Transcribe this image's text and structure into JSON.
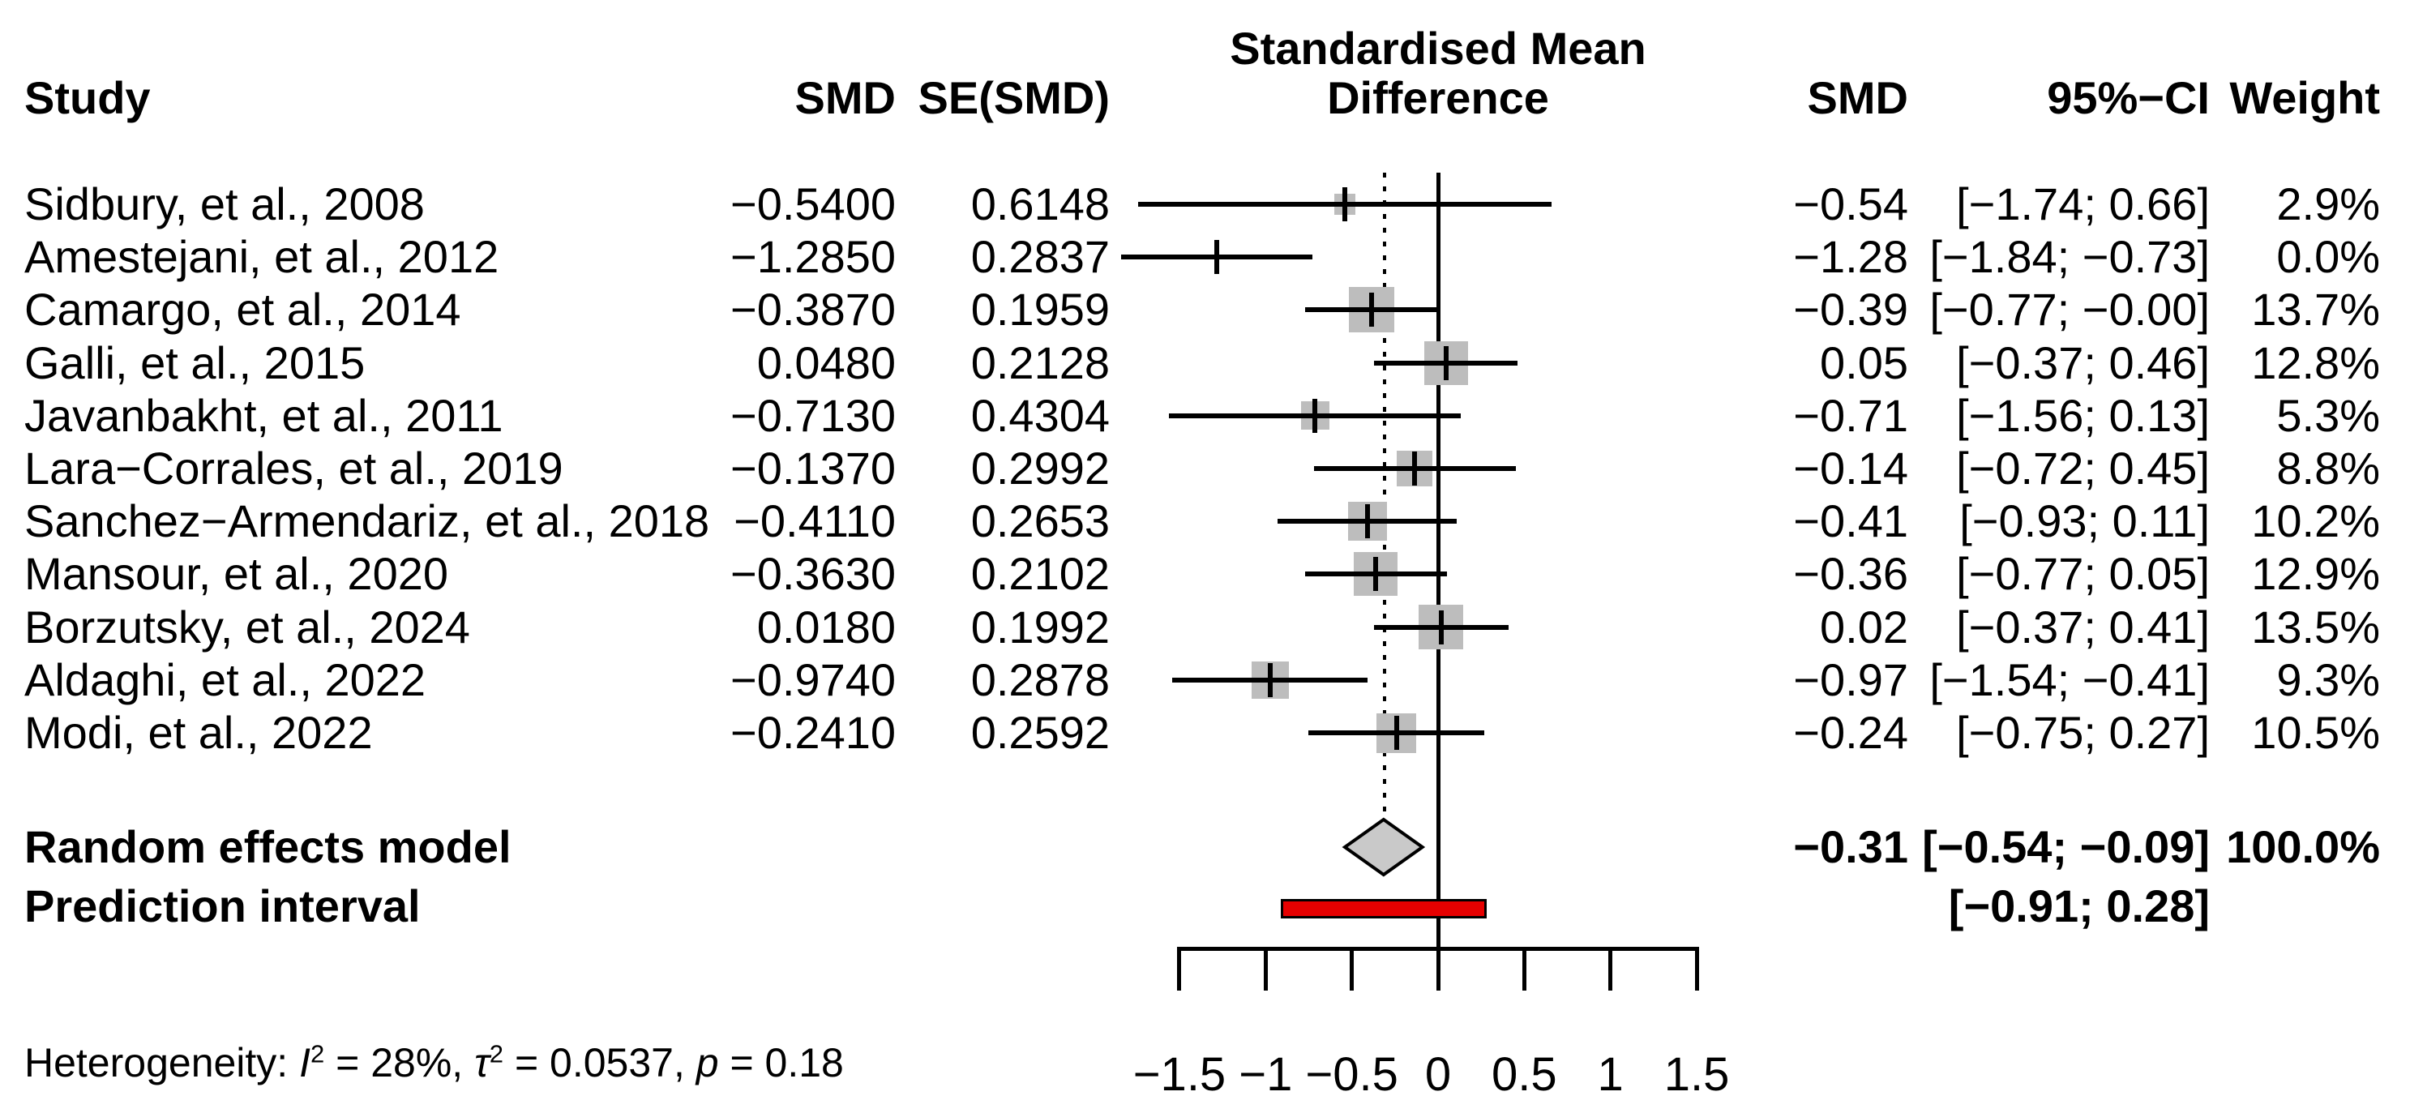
{
  "header": {
    "col_study": "Study",
    "col_smd_left": "SMD",
    "col_se": "SE(SMD)",
    "plot_title_line1": "Standardised Mean",
    "plot_title_line2": "Difference",
    "col_smd_right": "SMD",
    "col_ci": "95%−CI",
    "col_weight": "Weight"
  },
  "chart_data": {
    "type": "forest",
    "x_axis": {
      "range": [
        -1.5,
        1.5
      ],
      "ticks": [
        -1.5,
        -1,
        -0.5,
        0,
        0.5,
        1,
        1.5
      ],
      "tick_labels": [
        "−1.5",
        "−1",
        "−0.5",
        "0",
        "0.5",
        "1",
        "1.5"
      ]
    },
    "zero_line_x": 0,
    "pooled_dashed_line_x": -0.31,
    "studies": [
      {
        "name": "Sidbury, et al., 2008",
        "smd": "−0.5400",
        "se": "0.6148",
        "est": -0.54,
        "lo": -1.74,
        "hi": 0.66,
        "smd_label": "−0.54",
        "ci_label": "[−1.74; 0.66]",
        "weight_label": "2.9%",
        "weight": 2.9
      },
      {
        "name": "Amestejani, et al., 2012",
        "smd": "−1.2850",
        "se": "0.2837",
        "est": -1.285,
        "lo": -1.84,
        "hi": -0.73,
        "smd_label": "−1.28",
        "ci_label": "[−1.84; −0.73]",
        "weight_label": "0.0%",
        "weight": 0.0
      },
      {
        "name": "Camargo, et al., 2014",
        "smd": "−0.3870",
        "se": "0.1959",
        "est": -0.387,
        "lo": -0.77,
        "hi": -0.003,
        "smd_label": "−0.39",
        "ci_label": "[−0.77; −0.00]",
        "weight_label": "13.7%",
        "weight": 13.7
      },
      {
        "name": "Galli, et al., 2015",
        "smd": "0.0480",
        "se": "0.2128",
        "est": 0.048,
        "lo": -0.37,
        "hi": 0.46,
        "smd_label": "0.05",
        "ci_label": "[−0.37; 0.46]",
        "weight_label": "12.8%",
        "weight": 12.8
      },
      {
        "name": "Javanbakht, et al., 2011",
        "smd": "−0.7130",
        "se": "0.4304",
        "est": -0.713,
        "lo": -1.56,
        "hi": 0.13,
        "smd_label": "−0.71",
        "ci_label": "[−1.56; 0.13]",
        "weight_label": "5.3%",
        "weight": 5.3
      },
      {
        "name": "Lara−Corrales, et al., 2019",
        "smd": "−0.1370",
        "se": "0.2992",
        "est": -0.137,
        "lo": -0.72,
        "hi": 0.45,
        "smd_label": "−0.14",
        "ci_label": "[−0.72; 0.45]",
        "weight_label": "8.8%",
        "weight": 8.8
      },
      {
        "name": "Sanchez−Armendariz, et al., 2018",
        "smd": "−0.4110",
        "se": "0.2653",
        "est": -0.411,
        "lo": -0.93,
        "hi": 0.11,
        "smd_label": "−0.41",
        "ci_label": "[−0.93; 0.11]",
        "weight_label": "10.2%",
        "weight": 10.2
      },
      {
        "name": "Mansour, et al., 2020",
        "smd": "−0.3630",
        "se": "0.2102",
        "est": -0.363,
        "lo": -0.77,
        "hi": 0.05,
        "smd_label": "−0.36",
        "ci_label": "[−0.77; 0.05]",
        "weight_label": "12.9%",
        "weight": 12.9
      },
      {
        "name": "Borzutsky, et al., 2024",
        "smd": "0.0180",
        "se": "0.1992",
        "est": 0.018,
        "lo": -0.37,
        "hi": 0.41,
        "smd_label": "0.02",
        "ci_label": "[−0.37; 0.41]",
        "weight_label": "13.5%",
        "weight": 13.5
      },
      {
        "name": "Aldaghi, et al., 2022",
        "smd": "−0.9740",
        "se": "0.2878",
        "est": -0.974,
        "lo": -1.54,
        "hi": -0.41,
        "smd_label": "−0.97",
        "ci_label": "[−1.54; −0.41]",
        "weight_label": "9.3%",
        "weight": 9.3
      },
      {
        "name": "Modi, et al., 2022",
        "smd": "−0.2410",
        "se": "0.2592",
        "est": -0.241,
        "lo": -0.75,
        "hi": 0.27,
        "smd_label": "−0.24",
        "ci_label": "[−0.75; 0.27]",
        "weight_label": "10.5%",
        "weight": 10.5
      }
    ],
    "random_effects": {
      "label": "Random effects model",
      "est": -0.31,
      "lo": -0.54,
      "hi": -0.09,
      "smd_label": "−0.31",
      "ci_label": "[−0.54; −0.09]",
      "weight_label": "100.0%"
    },
    "prediction_interval": {
      "label": "Prediction interval",
      "lo": -0.91,
      "hi": 0.28,
      "ci_label": "[−0.91; 0.28]"
    },
    "heterogeneity_parts": [
      {
        "t": "Heterogeneity: "
      },
      {
        "t": "I",
        "style": "italic"
      },
      {
        "t": "2",
        "style": "sup"
      },
      {
        "t": " = 28%, "
      },
      {
        "t": "τ",
        "style": "italic"
      },
      {
        "t": "2",
        "style": "sup"
      },
      {
        "t": " = 0.0537, "
      },
      {
        "t": "p",
        "style": "italic"
      },
      {
        "t": " = 0.18"
      }
    ]
  },
  "colors": {
    "square_fill": "#bdbdbd",
    "diamond_fill": "#c9c9c9",
    "prediction_fill": "#e60000",
    "line": "#000000"
  }
}
